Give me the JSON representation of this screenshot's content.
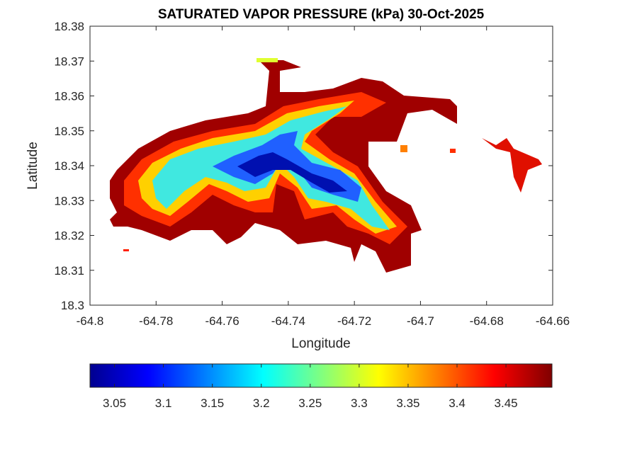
{
  "chart_data": {
    "type": "map",
    "title": "SATURATED VAPOR PRESSURE (kPa) 30-Oct-2025",
    "x_label": "Longitude",
    "y_label": "Latitude",
    "xlim": [
      -64.8,
      -64.66
    ],
    "xticks": [
      -64.8,
      -64.78,
      -64.76,
      -64.74,
      -64.72,
      -64.7,
      -64.68,
      -64.66
    ],
    "ylim": [
      18.3,
      18.38
    ],
    "yticks": [
      18.3,
      18.31,
      18.32,
      18.33,
      18.34,
      18.35,
      18.36,
      18.37,
      18.38
    ],
    "colorbar": {
      "clim": [
        3.025,
        3.497
      ],
      "ticks": [
        3.05,
        3.1,
        3.15,
        3.2,
        3.25,
        3.3,
        3.35,
        3.4,
        3.45
      ],
      "colormap": [
        "#00008f",
        "#0000ff",
        "#0080ff",
        "#00ffff",
        "#80ff80",
        "#ffff00",
        "#ff8000",
        "#ff0000",
        "#800000"
      ]
    }
  }
}
